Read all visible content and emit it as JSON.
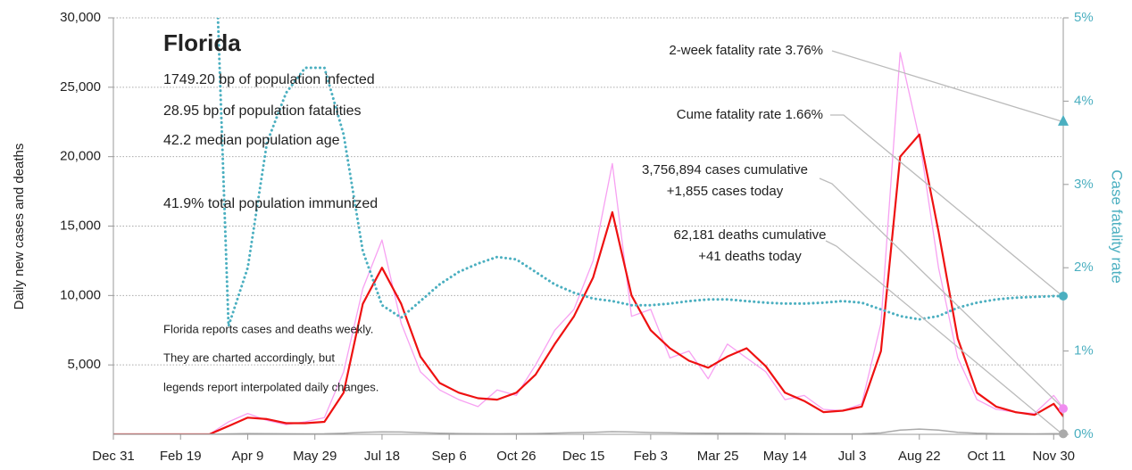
{
  "chart_data": {
    "type": "line",
    "info": {
      "title": "Florida",
      "lines": [
        "1749.20 bp of population infected",
        "28.95 bp of population fatalities",
        "42.2 median population age",
        "41.9% total population immunized"
      ],
      "notes": [
        "Florida reports cases and deaths weekly.",
        "They are charted accordingly, but",
        "legends report interpolated daily changes."
      ]
    },
    "y_label": "Daily new cases and deaths",
    "y2_label": "Case fatality rate",
    "annotations": [
      "2-week fatality rate 3.76%",
      "Cume fatality rate 1.66%",
      "3,756,894 cases cumulative",
      "+1,855 cases today",
      "62,181 deaths cumulative",
      "+41 deaths today"
    ],
    "end_markers": [
      {
        "value": 3.76,
        "axis": "y2",
        "shape": "triangle",
        "color": "#4bafc0"
      },
      {
        "value": 1.66,
        "axis": "y2",
        "shape": "circle",
        "color": "#4bafc0"
      },
      {
        "value": 1855,
        "axis": "y",
        "shape": "circle",
        "color": "#f08cf0"
      },
      {
        "value": 41,
        "axis": "y",
        "shape": "circle",
        "color": "#aaaaaa"
      }
    ],
    "x": [
      0,
      14,
      28,
      42,
      56,
      70,
      84,
      98,
      112,
      126,
      140,
      154,
      168,
      182,
      196,
      210,
      224,
      238,
      252,
      266,
      280,
      294,
      308,
      322,
      336,
      350,
      364,
      378,
      392,
      406,
      420,
      434,
      448,
      462,
      476,
      490,
      504,
      518,
      532,
      546,
      560,
      574,
      588,
      602,
      616,
      630,
      644,
      658,
      672,
      686,
      693
    ],
    "xlim": [
      0,
      693
    ],
    "xticks": [
      {
        "value": 0,
        "label": "Dec 31"
      },
      {
        "value": 49,
        "label": "Feb 19"
      },
      {
        "value": 98,
        "label": "Apr 9"
      },
      {
        "value": 147,
        "label": "May 29"
      },
      {
        "value": 196,
        "label": "Jul 18"
      },
      {
        "value": 245,
        "label": "Sep 6"
      },
      {
        "value": 294,
        "label": "Oct 26"
      },
      {
        "value": 343,
        "label": "Dec 15"
      },
      {
        "value": 392,
        "label": "Feb 3"
      },
      {
        "value": 441,
        "label": "Mar 25"
      },
      {
        "value": 490,
        "label": "May 14"
      },
      {
        "value": 539,
        "label": "Jul 3"
      },
      {
        "value": 588,
        "label": "Aug 22"
      },
      {
        "value": 637,
        "label": "Oct 11"
      },
      {
        "value": 686,
        "label": "Nov 30"
      }
    ],
    "ylim": [
      0,
      30000
    ],
    "yticks": [
      {
        "value": 5000,
        "label": "5,000"
      },
      {
        "value": 10000,
        "label": "10,000"
      },
      {
        "value": 15000,
        "label": "15,000"
      },
      {
        "value": 20000,
        "label": "20,000"
      },
      {
        "value": 25000,
        "label": "25,000"
      },
      {
        "value": 30000,
        "label": "30,000"
      }
    ],
    "y2lim": [
      0,
      5
    ],
    "y2ticks": [
      {
        "value": 0,
        "label": "0%"
      },
      {
        "value": 1,
        "label": "1%"
      },
      {
        "value": 2,
        "label": "2%"
      },
      {
        "value": 3,
        "label": "3%"
      },
      {
        "value": 4,
        "label": "4%"
      },
      {
        "value": 5,
        "label": "5%"
      }
    ],
    "grid": true,
    "series": [
      {
        "color": "#f7a1f2",
        "width": 1.3,
        "values": [
          0,
          0,
          0,
          0,
          0,
          0,
          900,
          1500,
          1000,
          700,
          900,
          1200,
          4500,
          10500,
          14000,
          8000,
          4500,
          3200,
          2500,
          2000,
          3200,
          2800,
          5000,
          7500,
          9000,
          12500,
          19500,
          8500,
          9000,
          5500,
          6000,
          4000,
          6500,
          5500,
          4500,
          2500,
          2800,
          1800,
          1700,
          2200,
          8000,
          27500,
          21300,
          12000,
          5500,
          2500,
          1800,
          1600,
          1500,
          2800,
          1900
        ]
      },
      {
        "color": "#ee1111",
        "width": 2.2,
        "values": [
          0,
          0,
          0,
          0,
          0,
          0,
          600,
          1200,
          1100,
          800,
          800,
          900,
          3000,
          9400,
          12000,
          9400,
          5600,
          3700,
          3000,
          2600,
          2500,
          3000,
          4300,
          6500,
          8500,
          11300,
          16000,
          10000,
          7500,
          6200,
          5300,
          4800,
          5600,
          6200,
          4900,
          3000,
          2400,
          1600,
          1700,
          2000,
          6000,
          20000,
          21600,
          14600,
          6900,
          3000,
          2000,
          1600,
          1400,
          2200,
          1300
        ]
      },
      {
        "color": "#4bafc0",
        "width": 3,
        "dotted": true,
        "axis": "y2",
        "values": [
          null,
          null,
          null,
          null,
          null,
          8,
          1.3,
          2.0,
          3.5,
          4.1,
          4.4,
          4.4,
          3.6,
          2.2,
          1.55,
          1.4,
          1.6,
          1.8,
          1.95,
          2.05,
          2.13,
          2.1,
          1.95,
          1.8,
          1.7,
          1.63,
          1.6,
          1.55,
          1.55,
          1.57,
          1.6,
          1.62,
          1.62,
          1.6,
          1.58,
          1.57,
          1.57,
          1.58,
          1.6,
          1.58,
          1.5,
          1.42,
          1.38,
          1.42,
          1.52,
          1.58,
          1.62,
          1.64,
          1.65,
          1.66,
          1.66
        ]
      },
      {
        "color": "#aaaaaa",
        "width": 1.5,
        "values": [
          0,
          0,
          0,
          0,
          0,
          0,
          30,
          60,
          50,
          40,
          30,
          40,
          80,
          150,
          180,
          170,
          120,
          80,
          60,
          50,
          40,
          50,
          60,
          90,
          120,
          150,
          190,
          170,
          130,
          110,
          90,
          80,
          70,
          70,
          60,
          50,
          40,
          30,
          30,
          40,
          100,
          300,
          380,
          300,
          150,
          80,
          50,
          40,
          30,
          50,
          41
        ]
      }
    ]
  }
}
